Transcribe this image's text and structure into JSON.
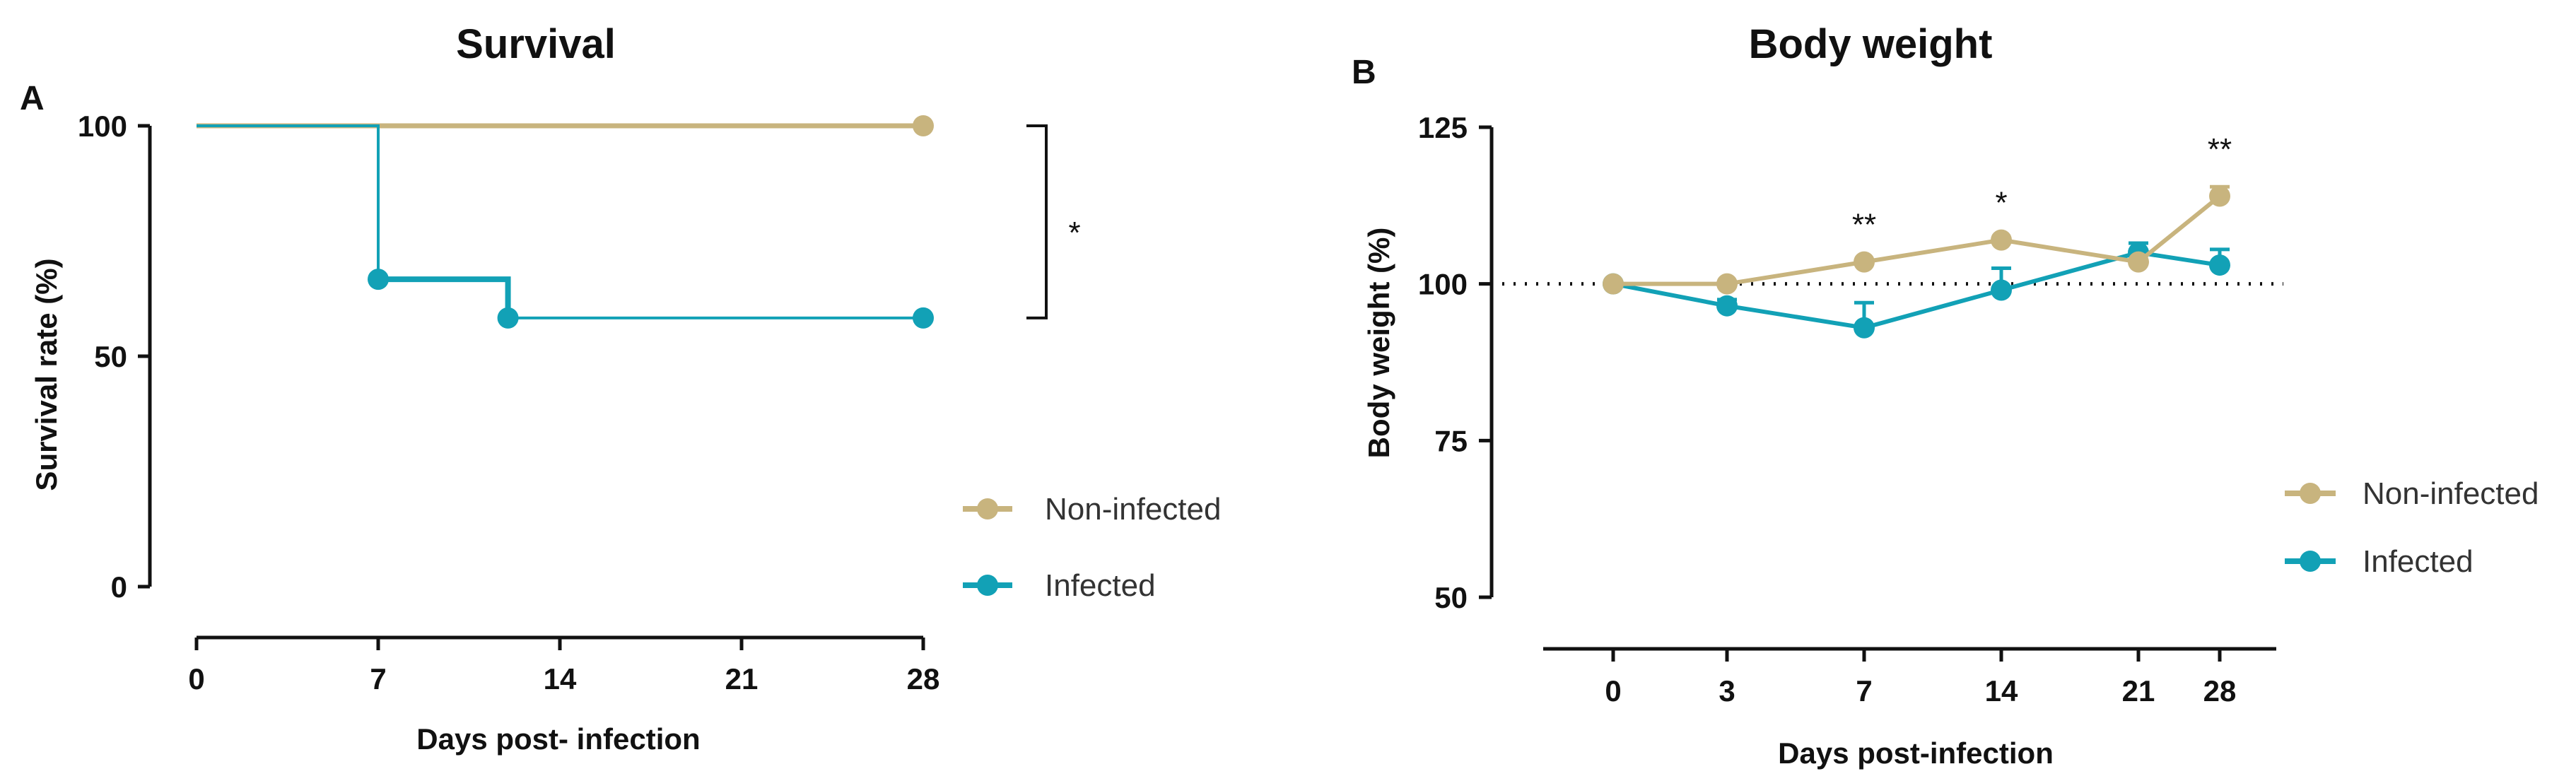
{
  "colors": {
    "non_infected": "#c8b47e",
    "infected": "#12a1b6",
    "text": "#111111",
    "legend_text": "#333333"
  },
  "chart_data": [
    {
      "panel": "A",
      "type": "line",
      "subtype": "kaplan-meier",
      "title": "Survival",
      "xlabel": "Days post- infection",
      "ylabel": "Survival rate (%)",
      "xlim": [
        0,
        28
      ],
      "ylim": [
        0,
        100
      ],
      "xticks": [
        0,
        7,
        14,
        21,
        28
      ],
      "yticks": [
        0,
        50,
        100
      ],
      "x_tick_labels": [
        "0",
        "7",
        "14",
        "21",
        "28"
      ],
      "y_tick_labels": [
        "0",
        "50",
        "100"
      ],
      "legend_position": "right",
      "series": [
        {
          "name": "Non-infected",
          "color_key": "non_infected",
          "steps": [
            [
              0,
              100
            ],
            [
              28,
              100
            ]
          ],
          "markers": [
            [
              28,
              100
            ]
          ]
        },
        {
          "name": "Infected",
          "color_key": "infected",
          "steps": [
            [
              0,
              100
            ],
            [
              7,
              66.7
            ],
            [
              12,
              58.3
            ],
            [
              28,
              58.3
            ]
          ],
          "markers": [
            [
              7,
              66.7
            ],
            [
              12,
              58.3
            ],
            [
              28,
              58.3
            ]
          ]
        }
      ],
      "annotations": [
        {
          "text": "*",
          "between_values": [
            100,
            58.3
          ],
          "at_x": 28
        }
      ]
    },
    {
      "panel": "B",
      "type": "line",
      "title": "Body weight",
      "xlabel": "Days post-infection",
      "ylabel": "Body weight (%)",
      "categories": [
        "0",
        "3",
        "7",
        "14",
        "21",
        "28"
      ],
      "ylim": [
        50,
        125
      ],
      "yticks": [
        50,
        75,
        100,
        125
      ],
      "y_tick_labels": [
        "50",
        "75",
        "100",
        "125"
      ],
      "reference_line": 100,
      "legend_position": "right",
      "series": [
        {
          "name": "Non-infected",
          "color_key": "non_infected",
          "values": [
            100,
            100,
            103.5,
            107,
            103.5,
            114
          ],
          "errors": [
            0,
            0,
            0,
            0,
            0,
            1.5
          ]
        },
        {
          "name": "Infected",
          "color_key": "infected",
          "values": [
            100,
            96.5,
            93,
            99,
            105,
            103
          ],
          "errors": [
            0,
            1,
            4,
            3.5,
            1.5,
            2.5
          ]
        }
      ],
      "annotations": [
        {
          "text": "**",
          "category": "7"
        },
        {
          "text": "*",
          "category": "14"
        },
        {
          "text": "**",
          "category": "28"
        }
      ]
    }
  ]
}
